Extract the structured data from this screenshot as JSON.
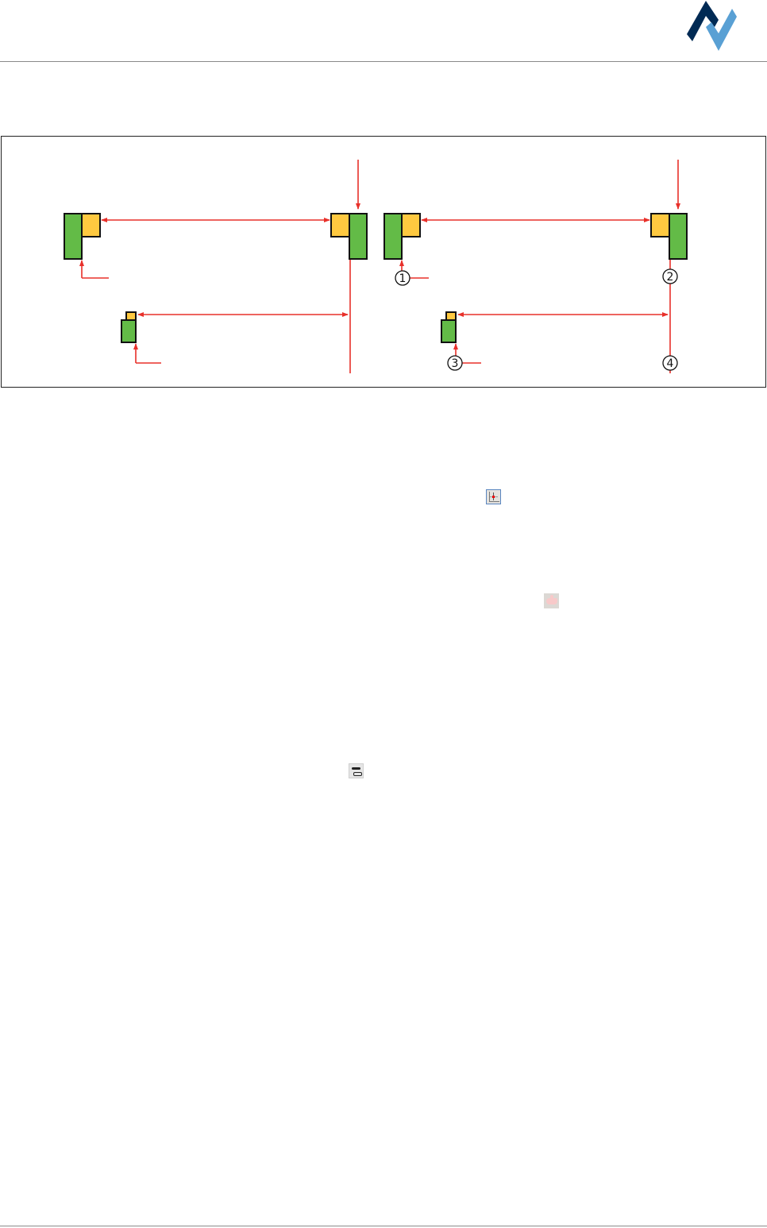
{
  "colors": {
    "logo_dark": "#002a54",
    "logo_light": "#59a0d4",
    "arrow": "#e8302a",
    "block_green": "#63bb47",
    "block_yellow": "#ffc940"
  },
  "figure": {
    "callouts": [
      "1",
      "2",
      "3",
      "4"
    ]
  },
  "icons": [
    "crosshair-toolbar-icon",
    "hand-pointer-icon",
    "component-toolbar-icon"
  ]
}
